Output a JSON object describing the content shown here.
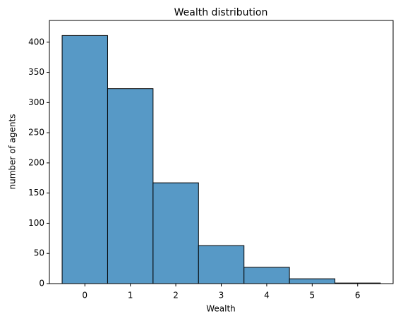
{
  "chart_data": {
    "type": "histogram",
    "title": "Wealth distribution",
    "x_label": "Wealth",
    "y_label": "number of agents",
    "bins": [
      -0.5,
      0.5,
      1.5,
      2.5,
      3.5,
      4.5,
      5.5,
      6.5
    ],
    "counts": [
      411,
      323,
      167,
      63,
      27,
      8,
      1
    ],
    "color": "#5799c6",
    "edgecolor": "#000000",
    "xlim": [
      -0.78,
      6.78
    ],
    "ylim": [
      0,
      436
    ],
    "xticks": [
      0,
      1,
      2,
      3,
      4,
      5,
      6
    ],
    "yticks": [
      0,
      50,
      100,
      150,
      200,
      250,
      300,
      350,
      400
    ]
  }
}
